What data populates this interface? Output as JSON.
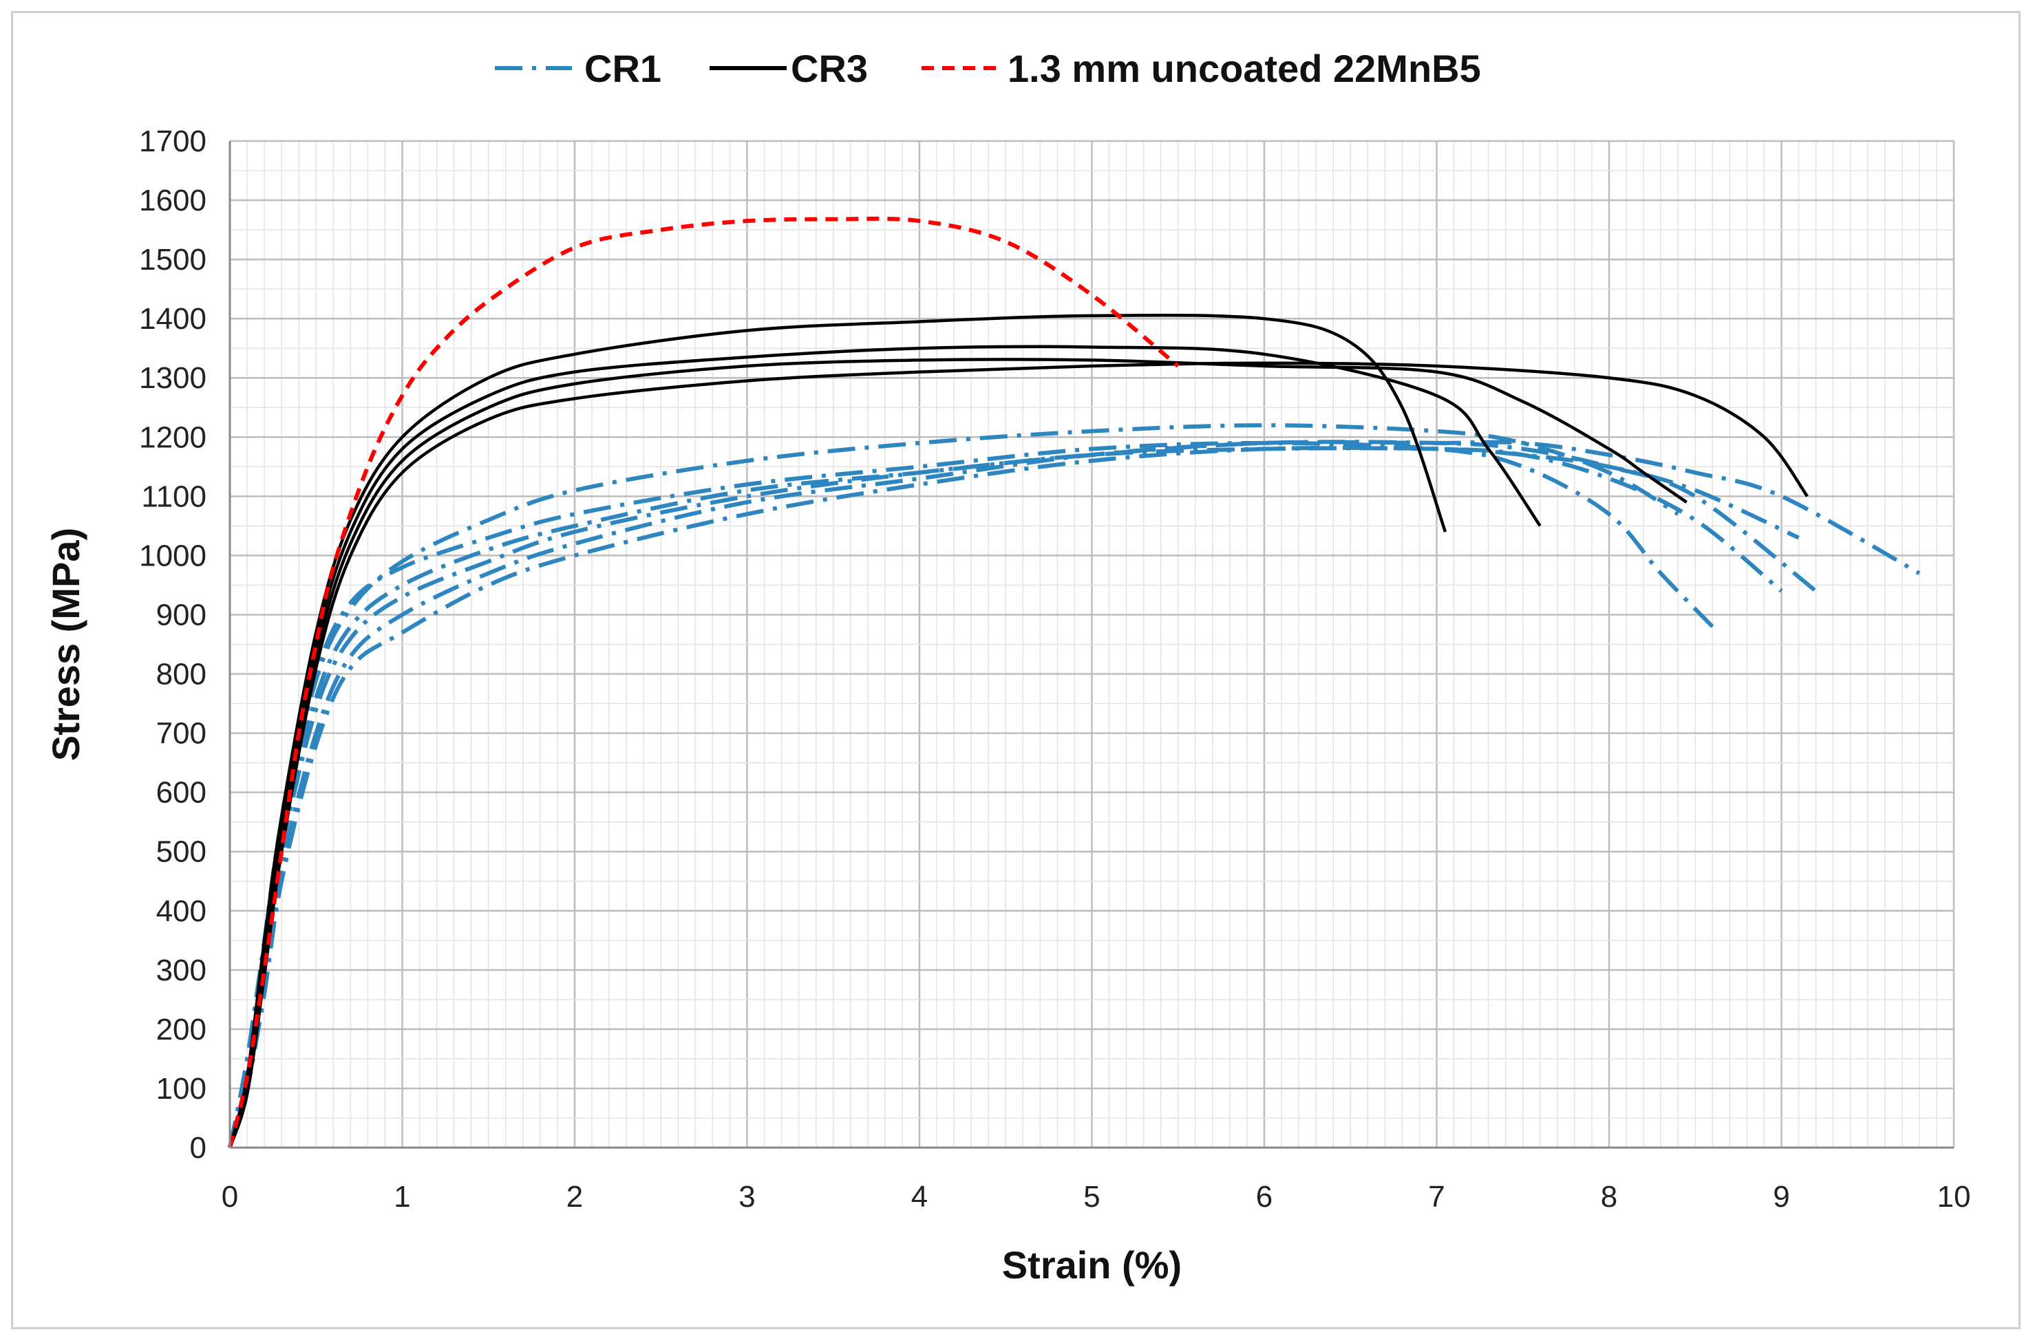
{
  "chart_data": {
    "type": "line",
    "title": "",
    "xlabel": "Strain (%)",
    "ylabel": "Stress (MPa)",
    "xlim": [
      0,
      10
    ],
    "ylim": [
      0,
      1700
    ],
    "x_ticks": [
      0,
      1,
      2,
      3,
      4,
      5,
      6,
      7,
      8,
      9,
      10
    ],
    "y_ticks": [
      0,
      100,
      200,
      300,
      400,
      500,
      600,
      700,
      800,
      900,
      1000,
      1100,
      1200,
      1300,
      1400,
      1500,
      1600,
      1700
    ],
    "grid": "on (major and minor)",
    "legend_position": "top",
    "legend": [
      {
        "label": "CR1",
        "color": "#2E86C1",
        "style": "dash-dot"
      },
      {
        "label": "CR3",
        "color": "#000000",
        "style": "solid"
      },
      {
        "label": "1.3 mm uncoated 22MnB5",
        "color": "#FF0000",
        "style": "dashed"
      }
    ],
    "series": [
      {
        "group": "CR1",
        "x": [
          0,
          0.1,
          0.2,
          0.3,
          0.5,
          0.7,
          1.0,
          1.5,
          2,
          3,
          4,
          5,
          6,
          7,
          7.5,
          8,
          8.3,
          8.6
        ],
        "y": [
          0,
          150,
          350,
          550,
          800,
          920,
          980,
          1030,
          1070,
          1120,
          1150,
          1180,
          1190,
          1180,
          1150,
          1070,
          970,
          880
        ]
      },
      {
        "group": "CR1",
        "x": [
          0,
          0.1,
          0.2,
          0.3,
          0.5,
          0.7,
          1.0,
          1.5,
          2,
          3,
          4,
          5,
          6,
          7,
          7.5,
          8,
          8.5,
          9.0
        ],
        "y": [
          0,
          130,
          320,
          520,
          760,
          880,
          950,
          1010,
          1050,
          1110,
          1140,
          1170,
          1180,
          1180,
          1170,
          1130,
          1060,
          940
        ]
      },
      {
        "group": "CR1",
        "x": [
          0,
          0.1,
          0.2,
          0.3,
          0.5,
          0.7,
          1.0,
          1.5,
          2,
          3,
          4,
          5,
          6,
          7,
          7.5,
          8,
          8.5,
          9.2
        ],
        "y": [
          0,
          120,
          300,
          500,
          740,
          860,
          930,
          990,
          1040,
          1100,
          1140,
          1170,
          1190,
          1190,
          1180,
          1150,
          1100,
          940
        ]
      },
      {
        "group": "CR1",
        "x": [
          0,
          0.1,
          0.2,
          0.3,
          0.5,
          0.7,
          1.0,
          1.5,
          2,
          3,
          4,
          5,
          6,
          7,
          7.5,
          8,
          8.5,
          9.0,
          9.8
        ],
        "y": [
          0,
          110,
          280,
          470,
          700,
          830,
          900,
          970,
          1020,
          1090,
          1130,
          1170,
          1190,
          1190,
          1190,
          1170,
          1140,
          1100,
          970
        ]
      },
      {
        "group": "CR1",
        "x": [
          0,
          0.1,
          0.2,
          0.3,
          0.5,
          0.7,
          1.0,
          1.5,
          2,
          3,
          4,
          5,
          6,
          7,
          7.5,
          8,
          8.4
        ],
        "y": [
          0,
          140,
          340,
          540,
          790,
          910,
          990,
          1060,
          1110,
          1160,
          1190,
          1210,
          1220,
          1210,
          1190,
          1140,
          1070
        ]
      },
      {
        "group": "CR1",
        "x": [
          0,
          0.1,
          0.2,
          0.3,
          0.5,
          0.7,
          1.0,
          1.5,
          2,
          3,
          4,
          5,
          6,
          7,
          7.5,
          8,
          8.5,
          9.1
        ],
        "y": [
          0,
          100,
          260,
          450,
          680,
          810,
          870,
          950,
          1000,
          1070,
          1120,
          1160,
          1180,
          1180,
          1170,
          1150,
          1110,
          1030
        ]
      },
      {
        "group": "CR3",
        "x": [
          0,
          0.1,
          0.2,
          0.3,
          0.5,
          0.7,
          1.0,
          1.5,
          2,
          3,
          4,
          5,
          6,
          6.5,
          6.8,
          7.05
        ],
        "y": [
          0,
          120,
          350,
          560,
          870,
          1060,
          1200,
          1300,
          1340,
          1380,
          1395,
          1405,
          1400,
          1360,
          1250,
          1040
        ]
      },
      {
        "group": "CR3",
        "x": [
          0,
          0.1,
          0.2,
          0.3,
          0.5,
          0.7,
          1.0,
          1.5,
          2,
          3,
          4,
          5,
          6,
          7,
          7.3,
          7.6
        ],
        "y": [
          0,
          110,
          330,
          540,
          850,
          1040,
          1180,
          1270,
          1310,
          1335,
          1350,
          1352,
          1340,
          1270,
          1180,
          1050
        ]
      },
      {
        "group": "CR3",
        "x": [
          0,
          0.1,
          0.2,
          0.3,
          0.5,
          0.7,
          1.0,
          1.5,
          2,
          3,
          4,
          5,
          6,
          7,
          7.5,
          8,
          8.2,
          8.45
        ],
        "y": [
          0,
          100,
          310,
          520,
          830,
          1020,
          1160,
          1250,
          1290,
          1320,
          1330,
          1330,
          1320,
          1310,
          1260,
          1180,
          1140,
          1090
        ]
      },
      {
        "group": "CR3",
        "x": [
          0,
          0.1,
          0.2,
          0.3,
          0.5,
          0.7,
          1.0,
          1.5,
          2,
          3,
          4,
          5,
          6,
          7,
          8,
          8.5,
          8.9,
          9.15
        ],
        "y": [
          0,
          90,
          290,
          500,
          810,
          1000,
          1140,
          1230,
          1265,
          1295,
          1310,
          1320,
          1325,
          1320,
          1300,
          1270,
          1200,
          1100
        ]
      },
      {
        "group": "22MnB5",
        "x": [
          0,
          0.1,
          0.2,
          0.3,
          0.4,
          0.5,
          0.6,
          0.8,
          1.0,
          1.2,
          1.5,
          2,
          2.5,
          3,
          3.5,
          4,
          4.5,
          5,
          5.5
        ],
        "y": [
          0,
          120,
          300,
          500,
          700,
          850,
          980,
          1150,
          1270,
          1350,
          1430,
          1520,
          1550,
          1565,
          1568,
          1565,
          1530,
          1440,
          1320
        ]
      }
    ]
  }
}
